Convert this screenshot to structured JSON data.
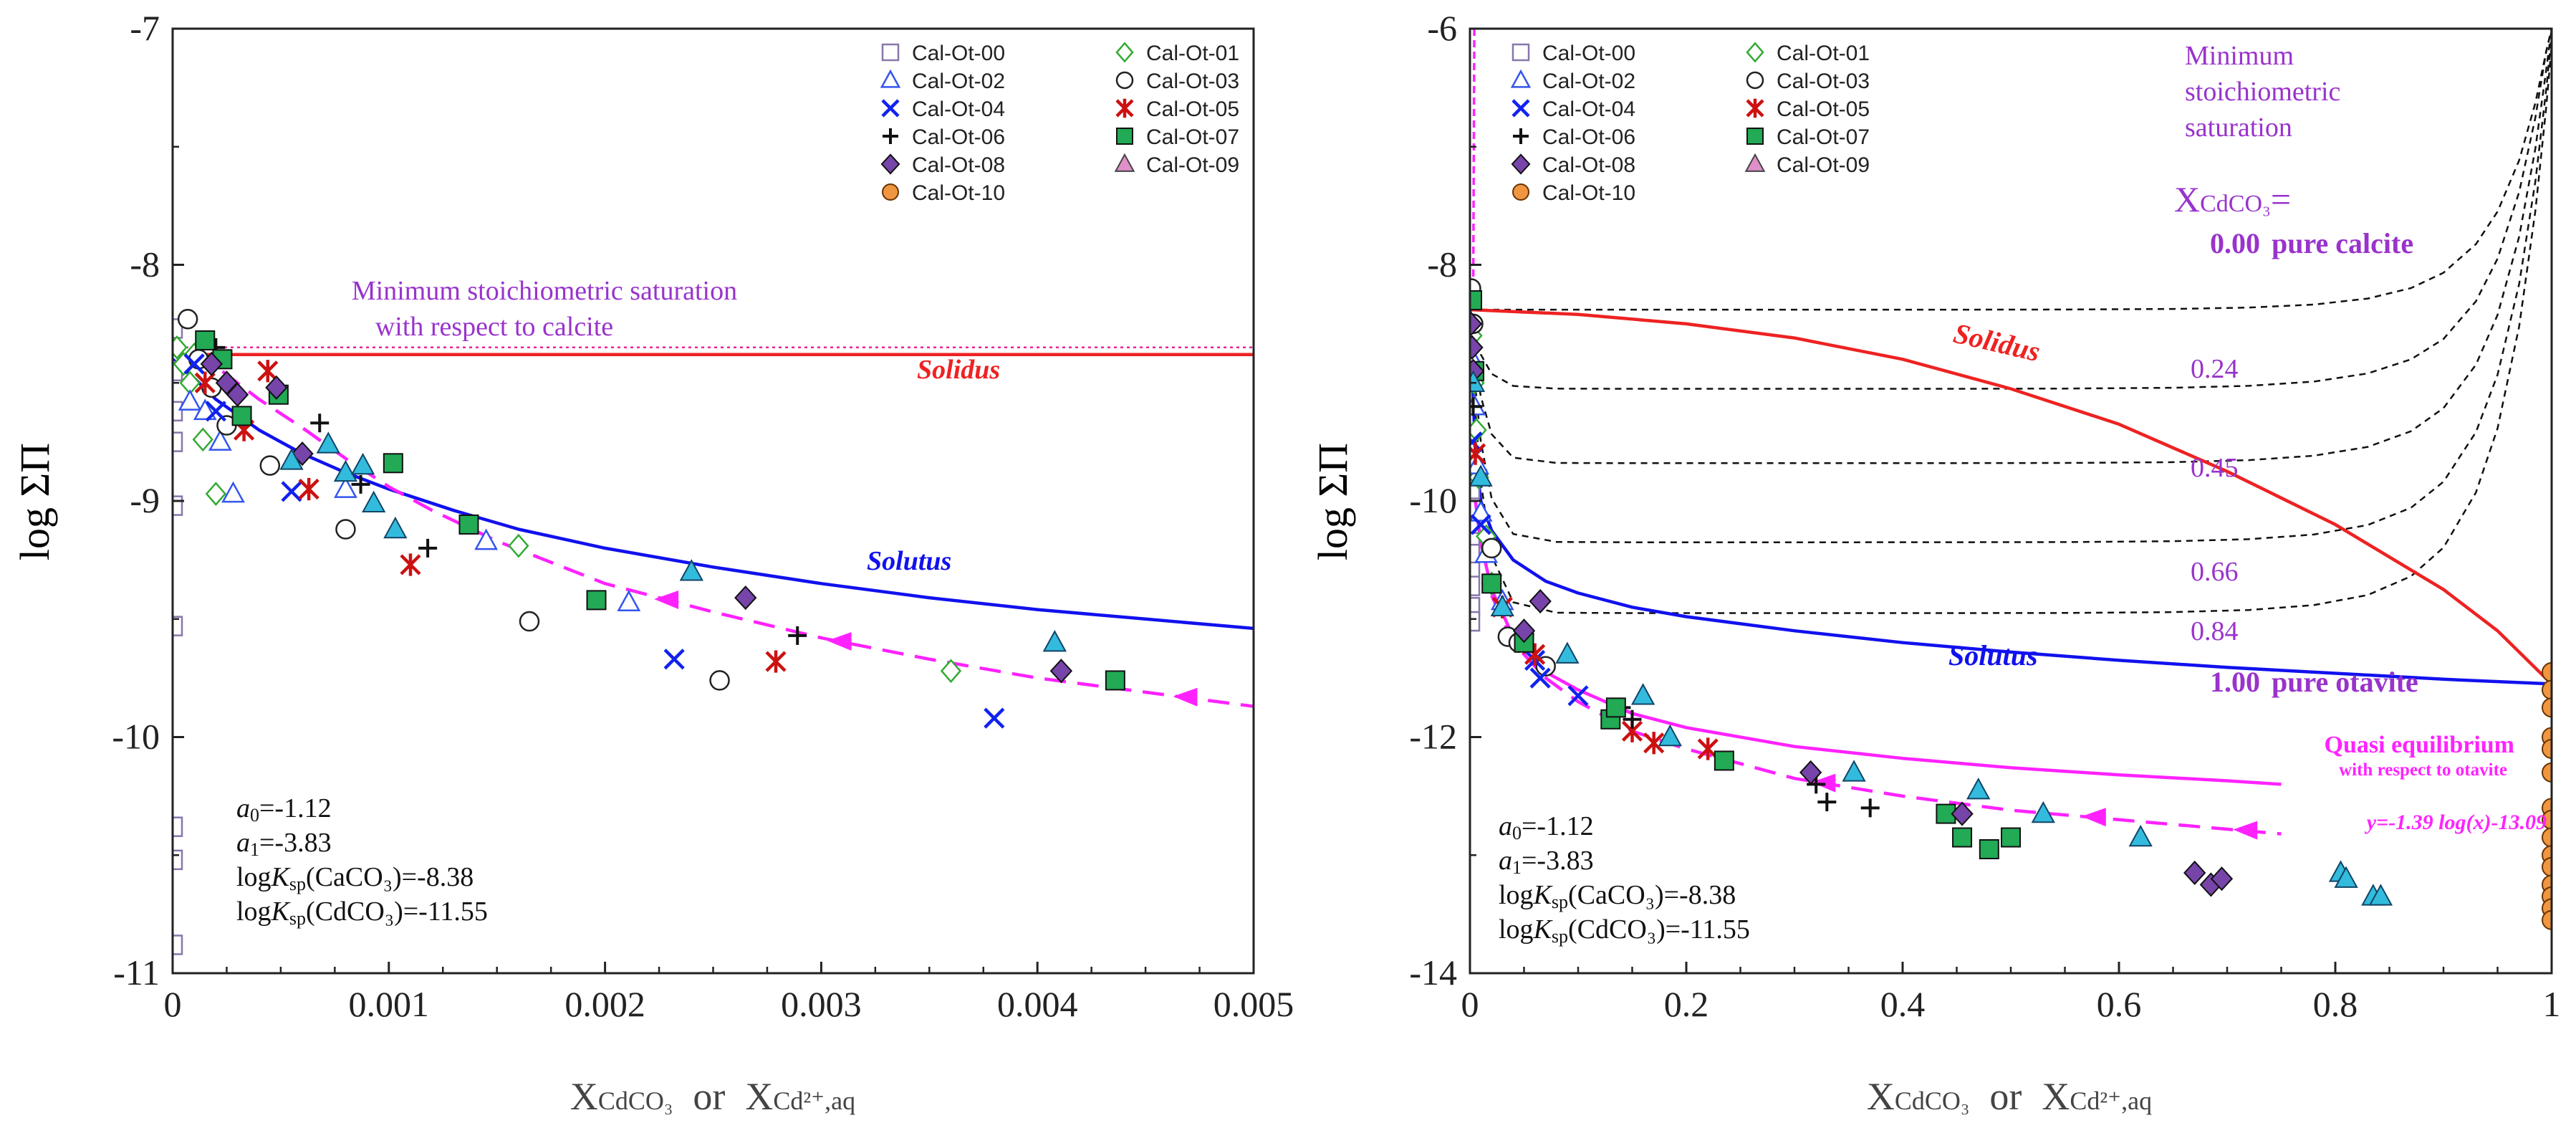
{
  "figure": {
    "xlabel_main": "X",
    "xlabel_sub1": "CdCO₃",
    "xlabel_or": "or",
    "xlabel_sub2": "Cd²⁺,aq",
    "ylabel": "log ΣΠ"
  },
  "colors": {
    "solidus": "#ee2222",
    "solutus": "#1111ee",
    "quasi": "#ff22ff",
    "purple_text": "#9933cc",
    "cyan_fill": "#33bbdd",
    "green_fill": "#22aa55",
    "diamond_fill": "#7744aa"
  },
  "legend_entries": [
    {
      "id": "s0",
      "label": "Cal-Ot-00",
      "symbol": "square-open",
      "color": "#8877aa"
    },
    {
      "id": "s1",
      "label": "Cal-Ot-01",
      "symbol": "diamond-open",
      "color": "#33aa33"
    },
    {
      "id": "s2",
      "label": "Cal-Ot-02",
      "symbol": "triangle-open",
      "color": "#3355ee"
    },
    {
      "id": "s3",
      "label": "Cal-Ot-03",
      "symbol": "circle-open",
      "color": "#222222"
    },
    {
      "id": "s4",
      "label": "Cal-Ot-04",
      "symbol": "x",
      "color": "#1122ee"
    },
    {
      "id": "s5",
      "label": "Cal-Ot-05",
      "symbol": "asterisk",
      "color": "#cc1111"
    },
    {
      "id": "s6",
      "label": "Cal-Ot-06",
      "symbol": "plus",
      "color": "#111111"
    },
    {
      "id": "s7",
      "label": "Cal-Ot-07",
      "symbol": "square-filled",
      "color": "#22aa55"
    },
    {
      "id": "s8",
      "label": "Cal-Ot-08",
      "symbol": "diamond-filled",
      "color": "#7744aa"
    },
    {
      "id": "s9",
      "label": "Cal-Ot-09",
      "symbol": "triangle-filled",
      "color": "#e090c8"
    },
    {
      "id": "s10",
      "label": "Cal-Ot-10",
      "symbol": "circle-filled",
      "color": "#f09540"
    }
  ],
  "chart_data": [
    {
      "type": "scatter",
      "title": "",
      "xlabel": "XCdCO3 or XCd2+,aq",
      "ylabel": "log ΣΠ",
      "xlim": [
        0,
        0.005
      ],
      "ylim": [
        -11,
        -7
      ],
      "xticks": [
        0,
        0.001,
        0.002,
        0.003,
        0.004,
        0.005
      ],
      "xtick_labels": [
        "0",
        "0.001",
        "0.002",
        "0.003",
        "0.004",
        "0.005"
      ],
      "yticks": [
        -11,
        -10,
        -9,
        -8,
        -7
      ],
      "ytick_labels": [
        "-11",
        "-10",
        "-9",
        "-8",
        "-7"
      ],
      "annotations": {
        "min_sat_line1": "Minimum stoichiometric saturation",
        "min_sat_line2": "with respect to calcite",
        "solidus": "Solidus",
        "solutus": "Solutus"
      },
      "params": [
        {
          "pre": "a",
          "sub": "0",
          "post": "=-1.12"
        },
        {
          "pre": "a",
          "sub": "1",
          "post": "=-3.83"
        },
        {
          "pre": "logK",
          "sub": "sp",
          "post": "(CaCO₃)=-8.38"
        },
        {
          "pre": "logK",
          "sub": "sp",
          "post": "(CdCO₃)=-11.55"
        }
      ],
      "lines": [
        {
          "name": "Minimum stoichiometric saturation",
          "style": "dotted",
          "color": "#ee2299",
          "x": [
            0,
            0.005
          ],
          "y": [
            -8.35,
            -8.35
          ]
        },
        {
          "name": "Solidus",
          "style": "solid",
          "color": "#ee2222",
          "x": [
            0,
            0.005
          ],
          "y": [
            -8.38,
            -8.38
          ]
        },
        {
          "name": "Solutus",
          "style": "solid",
          "color": "#1111ee",
          "x": [
            0,
            0.0001,
            0.0002,
            0.0004,
            0.0006,
            0.0008,
            0.001,
            0.0013,
            0.0016,
            0.002,
            0.0025,
            0.003,
            0.0035,
            0.004,
            0.0045,
            0.005
          ],
          "y": [
            -8.4,
            -8.48,
            -8.57,
            -8.7,
            -8.8,
            -8.88,
            -8.95,
            -9.04,
            -9.12,
            -9.2,
            -9.28,
            -9.35,
            -9.41,
            -9.46,
            -9.5,
            -9.54
          ]
        },
        {
          "name": "Quasi equilibrium",
          "style": "dashed",
          "color": "#ff22ff",
          "x": [
            0.0001,
            0.0002,
            0.0003,
            0.0004,
            0.0006,
            0.0008,
            0.001,
            0.0012,
            0.0015,
            0.002,
            0.0025,
            0.003,
            0.0035,
            0.004,
            0.0045,
            0.005
          ],
          "y": [
            -8.38,
            -8.43,
            -8.5,
            -8.57,
            -8.69,
            -8.82,
            -8.94,
            -9.04,
            -9.17,
            -9.35,
            -9.47,
            -9.58,
            -9.67,
            -9.75,
            -9.81,
            -9.87
          ],
          "arrows_at_x": [
            0.0023,
            0.0031,
            0.0047
          ]
        }
      ],
      "series": [
        {
          "name": "Cal-Ot-00",
          "x": [
            0,
            0,
            0,
            0,
            0,
            0,
            0,
            0,
            0
          ],
          "y": [
            -8.27,
            -8.45,
            -8.62,
            -8.75,
            -9.02,
            -9.53,
            -10.38,
            -10.52,
            -10.88
          ]
        },
        {
          "name": "Cal-Ot-01",
          "x": [
            2e-05,
            5e-05,
            8e-05,
            0.0001,
            0.00014,
            0.0002,
            0.0016,
            0.0036
          ],
          "y": [
            -8.35,
            -8.42,
            -8.5,
            -8.38,
            -8.74,
            -8.97,
            -9.19,
            -9.72
          ]
        },
        {
          "name": "Cal-Ot-02",
          "x": [
            8e-05,
            0.00015,
            0.00022,
            0.00028,
            0.0008,
            0.00145,
            0.00211
          ],
          "y": [
            -8.58,
            -8.62,
            -8.75,
            -8.97,
            -8.95,
            -9.17,
            -9.43
          ]
        },
        {
          "name": "Cal-Ot-03",
          "x": [
            7e-05,
            0.00012,
            0.00018,
            0.00025,
            0.00045,
            0.0008,
            0.00165,
            0.00253
          ],
          "y": [
            -8.23,
            -8.4,
            -8.52,
            -8.68,
            -8.85,
            -9.12,
            -9.51,
            -9.76
          ]
        },
        {
          "name": "Cal-Ot-04",
          "x": [
            0.0001,
            0.0002,
            0.00055,
            0.00232,
            0.0038
          ],
          "y": [
            -8.42,
            -8.62,
            -8.96,
            -9.67,
            -9.92
          ]
        },
        {
          "name": "Cal-Ot-05",
          "x": [
            0.00015,
            0.00033,
            0.00044,
            0.00063,
            0.0011,
            0.00279
          ],
          "y": [
            -8.5,
            -8.7,
            -8.45,
            -8.95,
            -9.27,
            -9.68
          ]
        },
        {
          "name": "Cal-Ot-06",
          "x": [
            0.0002,
            0.00068,
            0.00087,
            0.00118,
            0.00289
          ],
          "y": [
            -8.35,
            -8.67,
            -8.93,
            -9.2,
            -9.57
          ]
        },
        {
          "name": "Cal-Ot-07",
          "x": [
            0.00015,
            0.00023,
            0.00032,
            0.00049,
            0.00102,
            0.00137,
            0.00196,
            0.00436
          ],
          "y": [
            -8.32,
            -8.4,
            -8.64,
            -8.55,
            -8.84,
            -9.1,
            -9.42,
            -9.76
          ]
        },
        {
          "name": "Cal-Ot-08",
          "x": [
            0.00018,
            0.00025,
            0.0003,
            0.00048,
            0.0006,
            0.00265,
            0.00411
          ],
          "y": [
            -8.42,
            -8.5,
            -8.55,
            -8.52,
            -8.8,
            -9.41,
            -9.72
          ]
        },
        {
          "name": "Cal-Ot-09",
          "x": [
            0.00055,
            0.00072,
            0.0008,
            0.00088,
            0.00093,
            0.00103,
            0.0024,
            0.00408
          ],
          "y": [
            -8.83,
            -8.76,
            -8.88,
            -8.85,
            -9.01,
            -9.12,
            -9.3,
            -9.6
          ]
        }
      ]
    },
    {
      "type": "scatter",
      "title": "",
      "xlabel": "XCdCO3 or XCd2+,aq",
      "ylabel": "log ΣΠ",
      "xlim": [
        0,
        1
      ],
      "ylim": [
        -14,
        -6
      ],
      "xticks": [
        0,
        0.2,
        0.4,
        0.6,
        0.8,
        1
      ],
      "xtick_labels": [
        "0",
        "0.2",
        "0.4",
        "0.6",
        "0.8",
        "1"
      ],
      "yticks": [
        -14,
        -12,
        -10,
        -8,
        -6
      ],
      "ytick_labels": [
        "-14",
        "-12",
        "-10",
        "-8",
        "-6"
      ],
      "annotations": {
        "min_sat_line1": "Minimum",
        "min_sat_line2": "stoichiometric",
        "min_sat_line3": "saturation",
        "x_eq_main": "X",
        "x_eq_sub": "CdCO₃",
        "x_eq_tail": "=",
        "solidus": "Solidus",
        "solutus": "Solutus",
        "quasi_line1": "Quasi equilibrium",
        "quasi_line2": "with respect to otavite",
        "equation": "y=-1.39 log(x)-13.09"
      },
      "isoline_labels": [
        {
          "value": "0.00",
          "suffix": "pure calcite"
        },
        {
          "value": "0.24",
          "suffix": ""
        },
        {
          "value": "0.45",
          "suffix": ""
        },
        {
          "value": "0.66",
          "suffix": ""
        },
        {
          "value": "0.84",
          "suffix": ""
        },
        {
          "value": "1.00",
          "suffix": "pure otavite"
        }
      ],
      "params": [
        {
          "pre": "a",
          "sub": "0",
          "post": "=-1.12"
        },
        {
          "pre": "a",
          "sub": "1",
          "post": "=-3.83"
        },
        {
          "pre": "logK",
          "sub": "sp",
          "post": "(CaCO₃)=-8.38"
        },
        {
          "pre": "logK",
          "sub": "sp",
          "post": "(CdCO₃)=-11.55"
        }
      ],
      "isolines": [
        {
          "xcdco3": 0.0,
          "y_flat": -8.38
        },
        {
          "xcdco3": 0.24,
          "y_flat": -9.05
        },
        {
          "xcdco3": 0.45,
          "y_flat": -9.68
        },
        {
          "xcdco3": 0.66,
          "y_flat": -10.35
        },
        {
          "xcdco3": 0.84,
          "y_flat": -10.95
        },
        {
          "xcdco3": 1.0,
          "y_flat": -11.55
        }
      ],
      "lines": [
        {
          "name": "Solidus",
          "style": "solid",
          "color": "#ee2222",
          "x": [
            0,
            0.1,
            0.2,
            0.3,
            0.4,
            0.5,
            0.6,
            0.7,
            0.8,
            0.9,
            0.95,
            1
          ],
          "y": [
            -8.38,
            -8.42,
            -8.5,
            -8.62,
            -8.8,
            -9.05,
            -9.35,
            -9.75,
            -10.2,
            -10.75,
            -11.1,
            -11.55
          ]
        },
        {
          "name": "Solutus",
          "style": "solid",
          "color": "#1111ee",
          "x": [
            0,
            0.005,
            0.01,
            0.02,
            0.04,
            0.07,
            0.1,
            0.15,
            0.2,
            0.3,
            0.4,
            0.5,
            0.6,
            0.7,
            0.8,
            0.9,
            1
          ],
          "y": [
            -8.38,
            -9.6,
            -10.0,
            -10.25,
            -10.5,
            -10.68,
            -10.78,
            -10.9,
            -10.98,
            -11.1,
            -11.2,
            -11.28,
            -11.35,
            -11.41,
            -11.46,
            -11.51,
            -11.55
          ]
        },
        {
          "name": "Quasi equilibrium",
          "style": "solid",
          "color": "#ff22ff",
          "x": [
            0.005,
            0.01,
            0.02,
            0.04,
            0.07,
            0.1,
            0.15,
            0.2,
            0.3,
            0.4,
            0.5,
            0.6,
            0.7,
            0.75
          ],
          "y": [
            -10.0,
            -10.35,
            -10.75,
            -11.15,
            -11.45,
            -11.6,
            -11.8,
            -11.92,
            -12.08,
            -12.18,
            -12.26,
            -12.32,
            -12.37,
            -12.4
          ]
        },
        {
          "name": "y=-1.39 log(x)-13.09",
          "style": "dashed",
          "color": "#ff22ff",
          "x": [
            0.02,
            0.04,
            0.07,
            0.1,
            0.15,
            0.2,
            0.3,
            0.4,
            0.5,
            0.6,
            0.7,
            0.75
          ],
          "y": [
            -10.8,
            -11.2,
            -11.5,
            -11.7,
            -11.95,
            -12.1,
            -12.35,
            -12.5,
            -12.62,
            -12.7,
            -12.78,
            -12.82
          ],
          "arrows_at_x": [
            0.33,
            0.58,
            0.72
          ]
        }
      ],
      "series": [
        {
          "name": "Cal-Ot-00",
          "x": [
            0,
            0,
            0,
            0,
            0,
            0,
            0
          ],
          "y": [
            -10.35,
            -10.45,
            -10.6,
            -10.72,
            -10.9,
            -11.02,
            -9.9
          ]
        },
        {
          "name": "Cal-Ot-01",
          "x": [
            0.002,
            0.004,
            0.006,
            0.008,
            0.015,
            0.02
          ],
          "y": [
            -8.6,
            -9.0,
            -9.4,
            -9.8,
            -10.3,
            -10.7
          ]
        },
        {
          "name": "Cal-Ot-02",
          "x": [
            0.002,
            0.004,
            0.007,
            0.01,
            0.015,
            0.03
          ],
          "y": [
            -8.8,
            -9.2,
            -9.7,
            -10.1,
            -10.45,
            -10.85
          ]
        },
        {
          "name": "Cal-Ot-03",
          "x": [
            0.001,
            0.003,
            0.02,
            0.035,
            0.045,
            0.07
          ],
          "y": [
            -8.2,
            -8.5,
            -10.4,
            -11.15,
            -11.2,
            -11.4
          ]
        },
        {
          "name": "Cal-Ot-04",
          "x": [
            0.002,
            0.01,
            0.06,
            0.065,
            0.1
          ],
          "y": [
            -9.5,
            -10.2,
            -11.35,
            -11.5,
            -11.65
          ]
        },
        {
          "name": "Cal-Ot-05",
          "x": [
            0.005,
            0.03,
            0.05,
            0.06,
            0.15,
            0.17,
            0.22
          ],
          "y": [
            -9.6,
            -10.9,
            -11.2,
            -11.3,
            -11.95,
            -12.05,
            -12.1
          ]
        },
        {
          "name": "Cal-Ot-06",
          "x": [
            0.003,
            0.14,
            0.15,
            0.32,
            0.33,
            0.37
          ],
          "y": [
            -9.2,
            -11.75,
            -11.85,
            -12.4,
            -12.55,
            -12.6
          ]
        },
        {
          "name": "Cal-Ot-07",
          "x": [
            0.002,
            0.004,
            0.02,
            0.05,
            0.13,
            0.135,
            0.235,
            0.44,
            0.455,
            0.48,
            0.5
          ],
          "y": [
            -8.3,
            -8.9,
            -10.7,
            -11.2,
            -11.85,
            -11.75,
            -12.2,
            -12.65,
            -12.85,
            -12.95,
            -12.85
          ]
        },
        {
          "name": "Cal-Ot-08",
          "x": [
            0.001,
            0.002,
            0.003,
            0.05,
            0.065,
            0.315,
            0.455,
            0.67,
            0.685,
            0.695
          ],
          "y": [
            -8.5,
            -8.7,
            -8.9,
            -11.1,
            -10.85,
            -12.3,
            -12.65,
            -13.15,
            -13.25,
            -13.2
          ]
        },
        {
          "name": "Cal-Ot-09",
          "x": [
            0.003,
            0.01,
            0.03,
            0.09,
            0.16,
            0.185,
            0.355,
            0.47,
            0.53,
            0.62,
            0.805,
            0.81,
            0.835,
            0.842
          ],
          "y": [
            -9.0,
            -9.8,
            -10.9,
            -11.3,
            -11.65,
            -12.0,
            -12.3,
            -12.45,
            -12.65,
            -12.85,
            -13.15,
            -13.2,
            -13.35,
            -13.35
          ]
        },
        {
          "name": "Cal-Ot-10",
          "x": [
            1,
            1,
            1,
            1,
            1,
            1,
            1,
            1,
            1,
            1,
            1,
            1,
            1,
            1,
            1
          ],
          "y": [
            -11.45,
            -11.6,
            -11.75,
            -12.0,
            -12.1,
            -12.3,
            -12.6,
            -12.7,
            -12.85,
            -13.0,
            -13.1,
            -13.25,
            -13.35,
            -13.45,
            -13.55
          ]
        }
      ]
    }
  ]
}
